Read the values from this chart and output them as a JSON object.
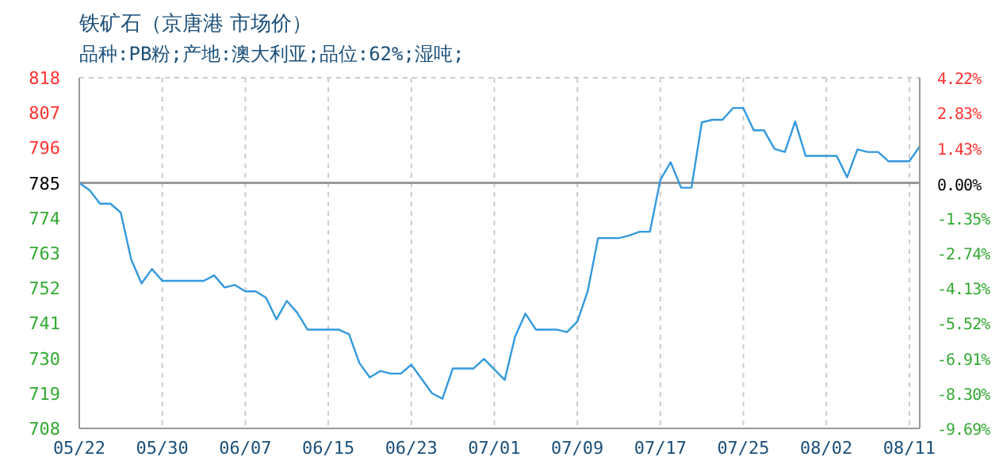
{
  "chart_data": {
    "type": "line",
    "title": "铁矿石（京唐港 市场价）",
    "subtitle": "品种:PB粉;产地:澳大利亚;品位:62%;湿吨;",
    "categories": [
      "05/22",
      null,
      null,
      null,
      null,
      null,
      null,
      null,
      "05/30",
      null,
      null,
      null,
      null,
      null,
      null,
      null,
      "06/07",
      null,
      null,
      null,
      null,
      null,
      null,
      null,
      "06/15",
      null,
      null,
      null,
      null,
      null,
      null,
      null,
      "06/23",
      null,
      null,
      null,
      null,
      null,
      null,
      null,
      "07/01",
      null,
      null,
      null,
      null,
      null,
      null,
      null,
      "07/09",
      null,
      null,
      null,
      null,
      null,
      null,
      null,
      "07/17",
      null,
      null,
      null,
      null,
      null,
      null,
      null,
      "07/25",
      null,
      null,
      null,
      null,
      null,
      null,
      null,
      "08/02",
      null,
      null,
      null,
      null,
      null,
      null,
      null,
      "08/11",
      null
    ],
    "series": [
      {
        "color": "#3399dd",
        "values": [
          785,
          782.7,
          778.5,
          778.5,
          775.7,
          761,
          753.5,
          758,
          754.3,
          754.3,
          754.3,
          754.3,
          754.3,
          756,
          752.2,
          753,
          751,
          751,
          749,
          742.2,
          748,
          744.3,
          739,
          739,
          739,
          739,
          737.5,
          728.5,
          724,
          726,
          725.2,
          725.2,
          728,
          723.5,
          719,
          717.3,
          726.8,
          726.8,
          726.8,
          729.8,
          726.5,
          723.2,
          736.8,
          744,
          739,
          739,
          739,
          738.2,
          741.5,
          751,
          767.7,
          767.7,
          767.7,
          768.5,
          769.7,
          769.7,
          786,
          791.5,
          783.5,
          783.5,
          804,
          804.8,
          804.8,
          808.5,
          808.5,
          801.5,
          801.5,
          795.7,
          794.7,
          804.3,
          793.5,
          793.5,
          793.5,
          793.5,
          786.8,
          795.5,
          794.7,
          794.7,
          791.8,
          791.8,
          791.8,
          796.5
        ]
      }
    ],
    "ylim": [
      708,
      818
    ],
    "yticks": [
      708,
      719,
      730,
      741,
      752,
      763,
      774,
      785,
      796,
      807,
      818
    ],
    "y2lim": [
      -9.69,
      4.22
    ],
    "y2ticks": [
      {
        "value": -9.69,
        "label": "-9.69%"
      },
      {
        "value": -8.3,
        "label": "-8.30%"
      },
      {
        "value": -6.91,
        "label": "-6.91%"
      },
      {
        "value": -5.52,
        "label": "-5.52%"
      },
      {
        "value": -4.13,
        "label": "-4.13%"
      },
      {
        "value": -2.74,
        "label": "-2.74%"
      },
      {
        "value": -1.35,
        "label": "-1.35%"
      },
      {
        "value": 0,
        "label": "0.00%"
      },
      {
        "value": 1.43,
        "label": "1.43%"
      },
      {
        "value": 2.83,
        "label": "2.83%"
      },
      {
        "value": 4.22,
        "label": "4.22%"
      }
    ],
    "ref_lines": [
      {
        "axis": "y",
        "value": 785,
        "color": "#999999"
      }
    ],
    "grid": true,
    "marker": "none",
    "line_style": "solid"
  }
}
